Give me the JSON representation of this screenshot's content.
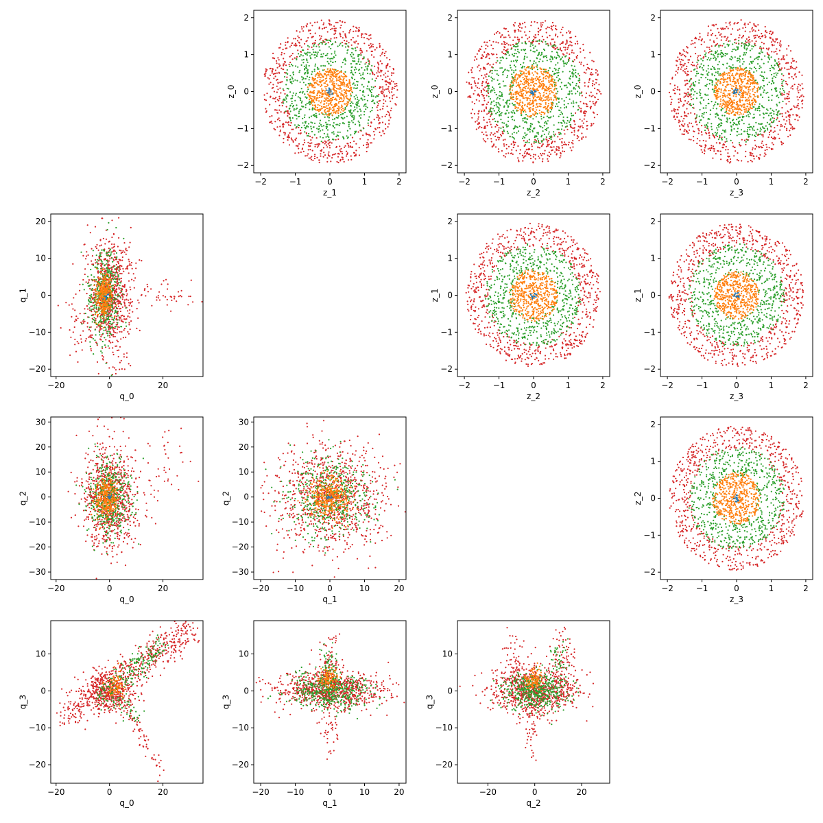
{
  "figure": {
    "rows": 4,
    "cols": 4,
    "series_colors": [
      "#d62728",
      "#2ca02c",
      "#ff7f0e",
      "#1f77b4"
    ]
  },
  "chart_data": [
    {
      "type": "scatter",
      "row": 0,
      "col": 1,
      "xlabel": "z_1",
      "ylabel": "z_0",
      "xlim": [
        -2.2,
        2.2
      ],
      "ylim": [
        -2.2,
        2.2
      ],
      "xticks": [
        -2,
        -1,
        0,
        1,
        2
      ],
      "yticks": [
        -2,
        -1,
        0,
        1,
        2
      ],
      "series": [
        {
          "shape": "shell",
          "color": "#d62728",
          "cx": 0,
          "cy": 0,
          "r_in": 1.3,
          "r_out": 1.95,
          "count": 700
        },
        {
          "shape": "shell",
          "color": "#2ca02c",
          "cx": 0,
          "cy": 0,
          "r_in": 0.6,
          "r_out": 1.4,
          "count": 600
        },
        {
          "shape": "shell",
          "color": "#ff7f0e",
          "cx": 0,
          "cy": 0,
          "r_in": 0.0,
          "r_out": 0.65,
          "count": 500
        },
        {
          "shape": "shell",
          "color": "#1f77b4",
          "cx": 0,
          "cy": 0,
          "r_in": 0.0,
          "r_out": 0.1,
          "count": 15
        }
      ]
    },
    {
      "type": "scatter",
      "row": 0,
      "col": 2,
      "xlabel": "z_2",
      "ylabel": "z_0",
      "xlim": [
        -2.2,
        2.2
      ],
      "ylim": [
        -2.2,
        2.2
      ],
      "xticks": [
        -2,
        -1,
        0,
        1,
        2
      ],
      "yticks": [
        -2,
        -1,
        0,
        1,
        2
      ],
      "series": [
        {
          "shape": "shell",
          "color": "#d62728",
          "cx": 0,
          "cy": 0,
          "r_in": 1.3,
          "r_out": 1.95,
          "count": 700
        },
        {
          "shape": "shell",
          "color": "#2ca02c",
          "cx": 0,
          "cy": 0,
          "r_in": 0.6,
          "r_out": 1.4,
          "count": 600
        },
        {
          "shape": "shell",
          "color": "#ff7f0e",
          "cx": 0,
          "cy": 0,
          "r_in": 0.0,
          "r_out": 0.7,
          "count": 500
        },
        {
          "shape": "shell",
          "color": "#1f77b4",
          "cx": 0,
          "cy": 0,
          "r_in": 0.0,
          "r_out": 0.1,
          "count": 15
        }
      ]
    },
    {
      "type": "scatter",
      "row": 0,
      "col": 3,
      "xlabel": "z_3",
      "ylabel": "z_0",
      "xlim": [
        -2.2,
        2.2
      ],
      "ylim": [
        -2.2,
        2.2
      ],
      "xticks": [
        -2,
        -1,
        0,
        1,
        2
      ],
      "yticks": [
        -2,
        -1,
        0,
        1,
        2
      ],
      "series": [
        {
          "shape": "shell",
          "color": "#d62728",
          "cx": 0,
          "cy": 0,
          "r_in": 1.3,
          "r_out": 1.95,
          "count": 700
        },
        {
          "shape": "shell",
          "color": "#2ca02c",
          "cx": 0,
          "cy": 0,
          "r_in": 0.6,
          "r_out": 1.4,
          "count": 600
        },
        {
          "shape": "shell",
          "color": "#ff7f0e",
          "cx": 0,
          "cy": 0,
          "r_in": 0.0,
          "r_out": 0.65,
          "count": 500
        },
        {
          "shape": "shell",
          "color": "#1f77b4",
          "cx": 0,
          "cy": 0,
          "r_in": 0.0,
          "r_out": 0.1,
          "count": 15
        }
      ]
    },
    {
      "type": "scatter",
      "row": 1,
      "col": 0,
      "xlabel": "q_0",
      "ylabel": "q_1",
      "xlim": [
        -22,
        35
      ],
      "ylim": [
        -22,
        22
      ],
      "xticks": [
        -20,
        0,
        20
      ],
      "yticks": [
        -20,
        -10,
        0,
        10,
        20
      ],
      "series": [
        {
          "shape": "gauss",
          "color": "#d62728",
          "cx": 0,
          "cy": 0,
          "sx": 4,
          "sy": 8,
          "count": 800
        },
        {
          "shape": "gauss",
          "color": "#d62728",
          "cx": 20,
          "cy": 0,
          "sx": 7,
          "sy": 2,
          "count": 50
        },
        {
          "shape": "gauss",
          "color": "#d62728",
          "cx": -12,
          "cy": -8,
          "sx": 4,
          "sy": 5,
          "count": 40
        },
        {
          "shape": "gauss",
          "color": "#2ca02c",
          "cx": -2,
          "cy": 0,
          "sx": 3,
          "sy": 6,
          "count": 450
        },
        {
          "shape": "gauss",
          "color": "#ff7f0e",
          "cx": -2,
          "cy": 0,
          "sx": 1.5,
          "sy": 3,
          "count": 300
        },
        {
          "shape": "gauss",
          "color": "#1f77b4",
          "cx": -1,
          "cy": 0,
          "sx": 0.5,
          "sy": 0.5,
          "count": 10
        }
      ]
    },
    {
      "type": "scatter",
      "row": 1,
      "col": 2,
      "xlabel": "z_2",
      "ylabel": "z_1",
      "xlim": [
        -2.2,
        2.2
      ],
      "ylim": [
        -2.2,
        2.2
      ],
      "xticks": [
        -2,
        -1,
        0,
        1,
        2
      ],
      "yticks": [
        -2,
        -1,
        0,
        1,
        2
      ],
      "series": [
        {
          "shape": "shell",
          "color": "#d62728",
          "cx": 0,
          "cy": 0,
          "r_in": 1.3,
          "r_out": 1.95,
          "count": 700
        },
        {
          "shape": "shell",
          "color": "#2ca02c",
          "cx": 0,
          "cy": 0,
          "r_in": 0.6,
          "r_out": 1.4,
          "count": 600
        },
        {
          "shape": "shell",
          "color": "#ff7f0e",
          "cx": 0,
          "cy": 0,
          "r_in": 0.0,
          "r_out": 0.7,
          "count": 500
        },
        {
          "shape": "shell",
          "color": "#1f77b4",
          "cx": 0,
          "cy": 0,
          "r_in": 0.0,
          "r_out": 0.1,
          "count": 15
        }
      ]
    },
    {
      "type": "scatter",
      "row": 1,
      "col": 3,
      "xlabel": "z_3",
      "ylabel": "z_1",
      "xlim": [
        -2.2,
        2.2
      ],
      "ylim": [
        -2.2,
        2.2
      ],
      "xticks": [
        -2,
        -1,
        0,
        1,
        2
      ],
      "yticks": [
        -2,
        -1,
        0,
        1,
        2
      ],
      "series": [
        {
          "shape": "shell",
          "color": "#d62728",
          "cx": 0,
          "cy": 0,
          "r_in": 1.3,
          "r_out": 1.95,
          "count": 700
        },
        {
          "shape": "shell",
          "color": "#2ca02c",
          "cx": 0,
          "cy": 0,
          "r_in": 0.6,
          "r_out": 1.4,
          "count": 600
        },
        {
          "shape": "shell",
          "color": "#ff7f0e",
          "cx": 0,
          "cy": 0,
          "r_in": 0.0,
          "r_out": 0.65,
          "count": 500
        },
        {
          "shape": "shell",
          "color": "#1f77b4",
          "cx": 0,
          "cy": 0,
          "r_in": 0.0,
          "r_out": 0.1,
          "count": 15
        }
      ]
    },
    {
      "type": "scatter",
      "row": 2,
      "col": 0,
      "xlabel": "q_0",
      "ylabel": "q_2",
      "xlim": [
        -22,
        35
      ],
      "ylim": [
        -33,
        32
      ],
      "xticks": [
        -20,
        0,
        20
      ],
      "yticks": [
        -30,
        -20,
        -10,
        0,
        10,
        20,
        30
      ],
      "series": [
        {
          "shape": "gauss",
          "color": "#d62728",
          "cx": 0,
          "cy": 0,
          "sx": 5,
          "sy": 10,
          "count": 800
        },
        {
          "shape": "gauss",
          "color": "#d62728",
          "cx": 20,
          "cy": 12,
          "sx": 7,
          "sy": 8,
          "count": 50
        },
        {
          "shape": "gauss",
          "color": "#2ca02c",
          "cx": 0,
          "cy": 0,
          "sx": 4,
          "sy": 8,
          "count": 450
        },
        {
          "shape": "gauss",
          "color": "#ff7f0e",
          "cx": -1,
          "cy": 0,
          "sx": 2,
          "sy": 4,
          "count": 300
        },
        {
          "shape": "gauss",
          "color": "#1f77b4",
          "cx": 0,
          "cy": 0,
          "sx": 0.5,
          "sy": 0.5,
          "count": 10
        }
      ]
    },
    {
      "type": "scatter",
      "row": 2,
      "col": 1,
      "xlabel": "q_1",
      "ylabel": "q_2",
      "xlim": [
        -22,
        22
      ],
      "ylim": [
        -33,
        32
      ],
      "xticks": [
        -20,
        -10,
        0,
        10,
        20
      ],
      "yticks": [
        -30,
        -20,
        -10,
        0,
        10,
        20,
        30
      ],
      "series": [
        {
          "shape": "gauss",
          "color": "#d62728",
          "cx": 0,
          "cy": 0,
          "sx": 8,
          "sy": 11,
          "count": 900
        },
        {
          "shape": "gauss",
          "color": "#2ca02c",
          "cx": 0,
          "cy": 0,
          "sx": 6,
          "sy": 8,
          "count": 500
        },
        {
          "shape": "gauss",
          "color": "#ff7f0e",
          "cx": 0,
          "cy": 0,
          "sx": 3,
          "sy": 4,
          "count": 350
        },
        {
          "shape": "gauss",
          "color": "#1f77b4",
          "cx": 0,
          "cy": 0,
          "sx": 0.5,
          "sy": 0.5,
          "count": 10
        }
      ]
    },
    {
      "type": "scatter",
      "row": 2,
      "col": 3,
      "xlabel": "z_3",
      "ylabel": "z_2",
      "xlim": [
        -2.2,
        2.2
      ],
      "ylim": [
        -2.2,
        2.2
      ],
      "xticks": [
        -2,
        -1,
        0,
        1,
        2
      ],
      "yticks": [
        -2,
        -1,
        0,
        1,
        2
      ],
      "series": [
        {
          "shape": "shell",
          "color": "#d62728",
          "cx": 0,
          "cy": 0,
          "r_in": 1.3,
          "r_out": 1.95,
          "count": 700
        },
        {
          "shape": "shell",
          "color": "#2ca02c",
          "cx": 0,
          "cy": 0,
          "r_in": 0.6,
          "r_out": 1.4,
          "count": 600
        },
        {
          "shape": "shell",
          "color": "#ff7f0e",
          "cx": 0,
          "cy": 0,
          "r_in": 0.0,
          "r_out": 0.7,
          "count": 500
        },
        {
          "shape": "shell",
          "color": "#1f77b4",
          "cx": 0,
          "cy": 0,
          "r_in": 0.0,
          "r_out": 0.1,
          "count": 15
        }
      ]
    },
    {
      "type": "scatter",
      "row": 3,
      "col": 0,
      "xlabel": "q_0",
      "ylabel": "q_3",
      "xlim": [
        -22,
        35
      ],
      "ylim": [
        -25,
        19
      ],
      "xticks": [
        -20,
        0,
        20
      ],
      "yticks": [
        -20,
        -10,
        0,
        10
      ],
      "series": [
        {
          "shape": "band",
          "color": "#d62728",
          "x0": -18,
          "x1": 32,
          "y0": -7,
          "y1": 17,
          "spread": 2.5,
          "count": 500
        },
        {
          "shape": "gauss",
          "color": "#d62728",
          "cx": 0,
          "cy": 0,
          "sx": 5,
          "sy": 3,
          "count": 450
        },
        {
          "shape": "band",
          "color": "#d62728",
          "x0": 5,
          "x1": 20,
          "y0": -3,
          "y1": -22,
          "spread": 1.5,
          "count": 60
        },
        {
          "shape": "band",
          "color": "#2ca02c",
          "x0": -5,
          "x1": 20,
          "y0": -2,
          "y1": 12,
          "spread": 2,
          "count": 200
        },
        {
          "shape": "band",
          "color": "#2ca02c",
          "x0": 2,
          "x1": 12,
          "y0": -2,
          "y1": -8,
          "spread": 1.5,
          "count": 40
        },
        {
          "shape": "gauss",
          "color": "#ff7f0e",
          "cx": 2,
          "cy": 1,
          "sx": 2,
          "sy": 2,
          "count": 80
        }
      ]
    },
    {
      "type": "scatter",
      "row": 3,
      "col": 1,
      "xlabel": "q_1",
      "ylabel": "q_3",
      "xlim": [
        -22,
        22
      ],
      "ylim": [
        -25,
        19
      ],
      "xticks": [
        -20,
        -10,
        0,
        10,
        20
      ],
      "yticks": [
        -20,
        -10,
        0,
        10
      ],
      "series": [
        {
          "shape": "gauss",
          "color": "#d62728",
          "cx": 0,
          "cy": 0,
          "sx": 8,
          "sy": 2.5,
          "count": 800
        },
        {
          "shape": "gauss",
          "color": "#d62728",
          "cx": 0,
          "cy": 5,
          "sx": 1.5,
          "sy": 6,
          "count": 120
        },
        {
          "shape": "gauss",
          "color": "#d62728",
          "cx": 0,
          "cy": -10,
          "sx": 1.5,
          "sy": 5,
          "count": 40
        },
        {
          "shape": "gauss",
          "color": "#2ca02c",
          "cx": 0,
          "cy": 0,
          "sx": 6,
          "sy": 2.5,
          "count": 450
        },
        {
          "shape": "gauss",
          "color": "#2ca02c",
          "cx": 0,
          "cy": 6,
          "sx": 1.2,
          "sy": 3,
          "count": 60
        },
        {
          "shape": "gauss",
          "color": "#ff7f0e",
          "cx": 0,
          "cy": 3,
          "sx": 1.5,
          "sy": 1.5,
          "count": 100
        }
      ]
    },
    {
      "type": "scatter",
      "row": 3,
      "col": 2,
      "xlabel": "q_2",
      "ylabel": "q_3",
      "xlim": [
        -33,
        32
      ],
      "ylim": [
        -25,
        19
      ],
      "xticks": [
        -20,
        0,
        20
      ],
      "yticks": [
        -20,
        -10,
        0,
        10
      ],
      "series": [
        {
          "shape": "gauss",
          "color": "#d62728",
          "cx": 0,
          "cy": 0,
          "sx": 9,
          "sy": 3,
          "count": 800
        },
        {
          "shape": "gauss",
          "color": "#d62728",
          "cx": -8,
          "cy": 8,
          "sx": 3,
          "sy": 4,
          "count": 60
        },
        {
          "shape": "gauss",
          "color": "#d62728",
          "cx": 12,
          "cy": 9,
          "sx": 3,
          "sy": 4,
          "count": 80
        },
        {
          "shape": "gauss",
          "color": "#d62728",
          "cx": -2,
          "cy": -10,
          "sx": 1.5,
          "sy": 5,
          "count": 40
        },
        {
          "shape": "gauss",
          "color": "#2ca02c",
          "cx": 0,
          "cy": 0,
          "sx": 7,
          "sy": 2.5,
          "count": 450
        },
        {
          "shape": "gauss",
          "color": "#2ca02c",
          "cx": 10,
          "cy": 8,
          "sx": 2,
          "sy": 3,
          "count": 40
        },
        {
          "shape": "gauss",
          "color": "#ff7f0e",
          "cx": 0,
          "cy": 3,
          "sx": 2,
          "sy": 1.5,
          "count": 100
        }
      ]
    }
  ]
}
